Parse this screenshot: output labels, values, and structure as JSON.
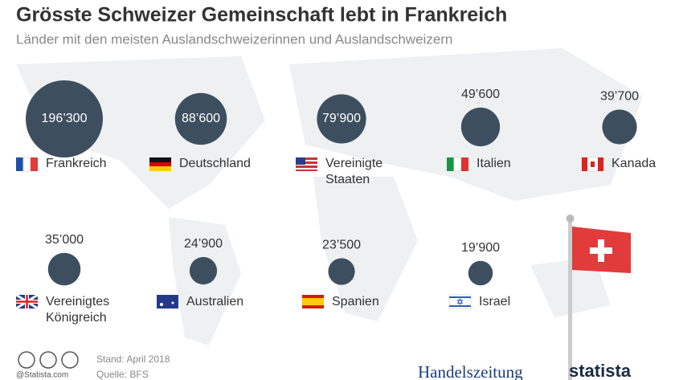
{
  "chart_data": {
    "type": "bubble",
    "title": "Grösste Schweizer Gemeinschaft lebt in Frankreich",
    "subtitle": "Länder mit den meisten Auslandschweizerinnen und Auslandschweizern",
    "categories": [
      "Frankreich",
      "Deutschland",
      "Vereinigte Staaten",
      "Italien",
      "Kanada",
      "Vereinigtes Königreich",
      "Australien",
      "Spanien",
      "Israel"
    ],
    "values": [
      196300,
      88600,
      79900,
      49600,
      39700,
      35000,
      24900,
      23500,
      19900
    ],
    "value_labels": [
      "196’300",
      "88’600",
      "79’900",
      "49’600",
      "39’700",
      "35’000",
      "24’900",
      "23’500",
      "19’900"
    ],
    "color": "#3d4f5f",
    "footer": {
      "date": "Stand: April 2018",
      "source": "Quelle: BFS",
      "credit": "@Statista.com",
      "partner": "Handelszeitung",
      "brand": "statista"
    }
  }
}
